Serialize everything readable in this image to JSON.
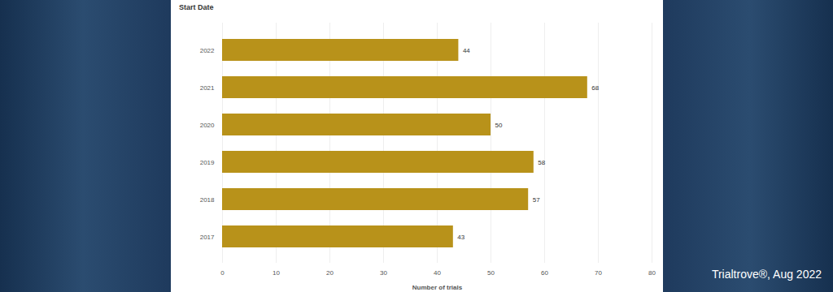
{
  "chart_data": {
    "type": "bar",
    "orientation": "horizontal",
    "y_label": "Start Date",
    "x_label": "Number of trials",
    "caption": "Trialtrove®, Aug 2022",
    "categories": [
      "2022",
      "2021",
      "2020",
      "2019",
      "2018",
      "2017"
    ],
    "values": [
      44,
      68,
      50,
      58,
      57,
      43
    ],
    "color": "#b8921a",
    "xlim": [
      0,
      80
    ],
    "xticks": [
      0,
      10,
      20,
      30,
      40,
      50,
      60,
      70,
      80
    ],
    "grid": true,
    "data_labels": true
  }
}
